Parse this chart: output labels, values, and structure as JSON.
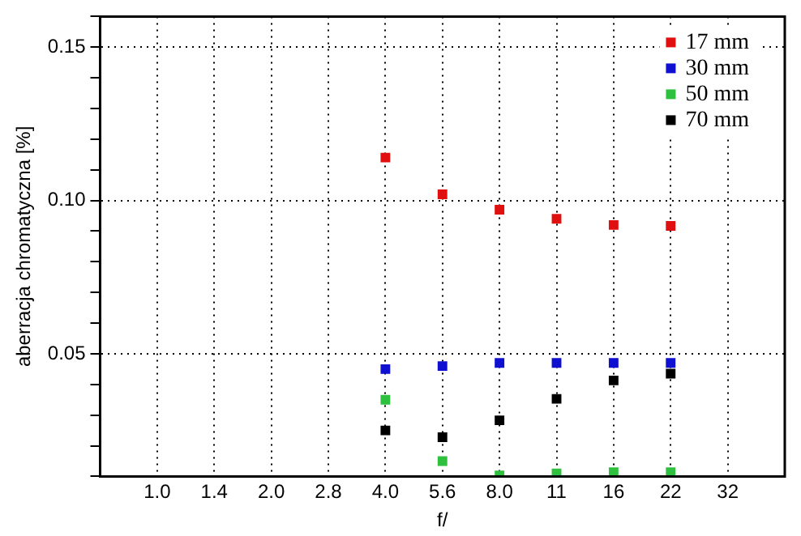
{
  "chart_data": {
    "type": "scatter",
    "xlabel": "f/",
    "ylabel": "aberracja chromatyczna [%]",
    "categories": [
      "1.0",
      "1.4",
      "2.0",
      "2.8",
      "4.0",
      "5.6",
      "8.0",
      "11",
      "16",
      "22",
      "32"
    ],
    "ylim": [
      0.01,
      0.16
    ],
    "yticks": [
      {
        "value": 0.01,
        "label": null
      },
      {
        "value": 0.02,
        "label": null
      },
      {
        "value": 0.03,
        "label": null
      },
      {
        "value": 0.04,
        "label": null
      },
      {
        "value": 0.05,
        "label": "0.05"
      },
      {
        "value": 0.06,
        "label": null
      },
      {
        "value": 0.07,
        "label": null
      },
      {
        "value": 0.08,
        "label": null
      },
      {
        "value": 0.09,
        "label": null
      },
      {
        "value": 0.1,
        "label": "0.10"
      },
      {
        "value": 0.11,
        "label": null
      },
      {
        "value": 0.12,
        "label": null
      },
      {
        "value": 0.13,
        "label": null
      },
      {
        "value": 0.14,
        "label": null
      },
      {
        "value": 0.15,
        "label": "0.15"
      },
      {
        "value": 0.16,
        "label": null
      }
    ],
    "grid": true,
    "legend": "top right",
    "marker": "square",
    "series": [
      {
        "name": "17 mm",
        "color": "#e01010",
        "values": [
          null,
          null,
          null,
          null,
          0.114,
          0.102,
          0.097,
          0.094,
          0.092,
          0.0917,
          null
        ]
      },
      {
        "name": "30 mm",
        "color": "#1010d0",
        "values": [
          null,
          null,
          null,
          null,
          0.045,
          0.046,
          0.047,
          0.047,
          0.047,
          0.047,
          null
        ]
      },
      {
        "name": "50 mm",
        "color": "#30c040",
        "values": [
          null,
          null,
          null,
          null,
          0.035,
          0.015,
          0.0103,
          0.011,
          0.0114,
          0.0114,
          null
        ]
      },
      {
        "name": "70 mm",
        "color": "#000000",
        "values": [
          null,
          null,
          null,
          null,
          0.025,
          0.0228,
          0.0283,
          0.0353,
          0.0413,
          0.0435,
          null
        ]
      }
    ]
  }
}
